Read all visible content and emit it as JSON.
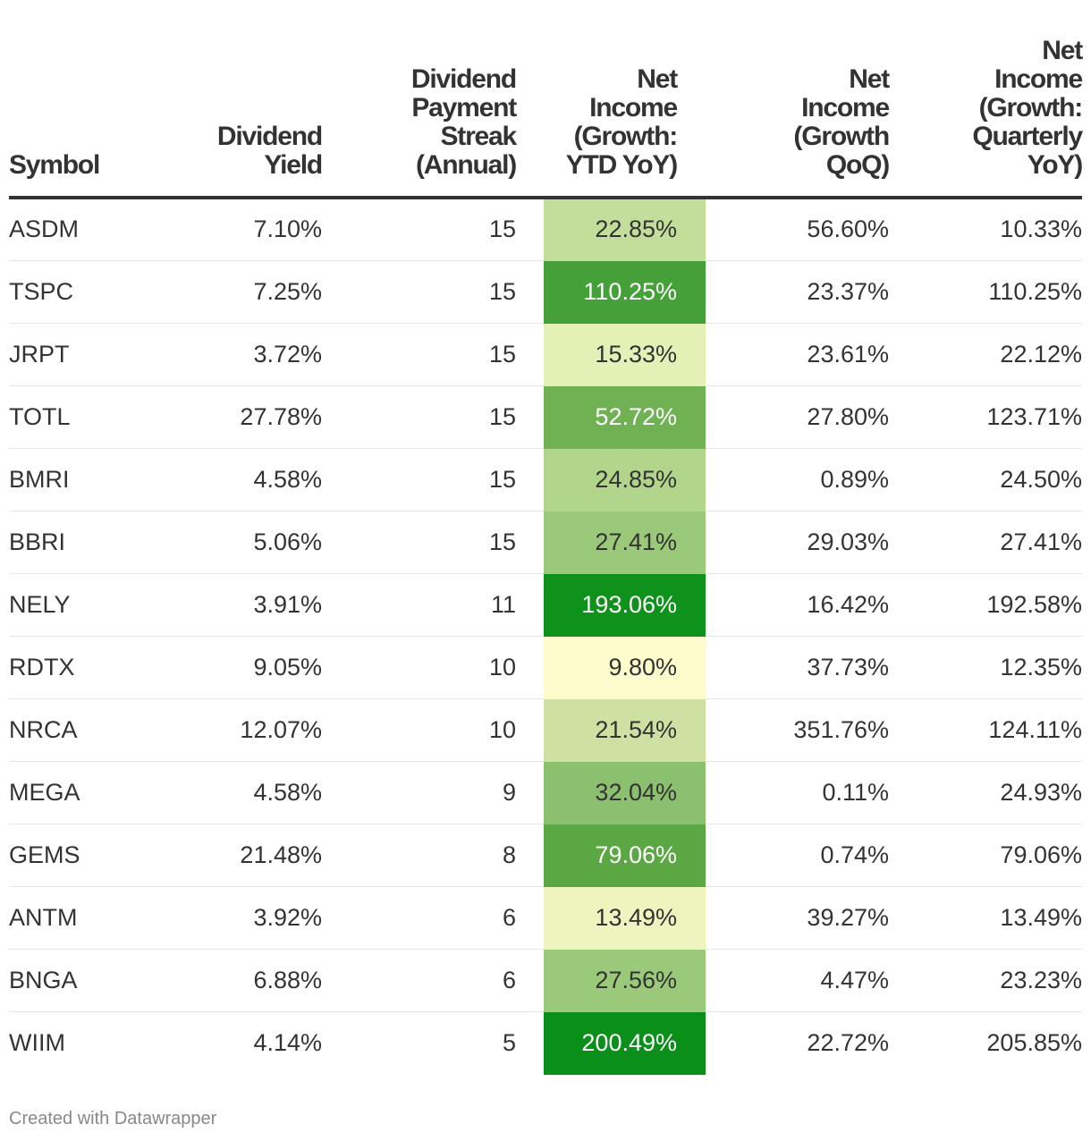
{
  "chart_data": {
    "type": "table",
    "columns": [
      "Symbol",
      "Dividend Yield",
      "Dividend Payment Streak (Annual)",
      "Net Income (Growth: YTD YoY)",
      "Net Income (Growth QoQ)",
      "Net Income (Growth: Quarterly YoY)"
    ],
    "header_lines": [
      [
        "Symbol"
      ],
      [
        "Dividend",
        "Yield"
      ],
      [
        "Dividend",
        "Payment",
        "Streak",
        "(Annual)"
      ],
      [
        "Net",
        "Income",
        "(Growth:",
        "YTD YoY)"
      ],
      [
        "Net",
        "Income",
        "(Growth",
        "QoQ)"
      ],
      [
        "Net",
        "Income",
        "(Growth:",
        "Quarterly",
        "YoY)"
      ]
    ],
    "heatmap_column": 3,
    "rows": [
      {
        "symbol": "ASDM",
        "yield": "7.10%",
        "streak": "15",
        "ytd": "22.85%",
        "ytd_value": 22.85,
        "qoq": "56.60%",
        "qyoy": "10.33%"
      },
      {
        "symbol": "TSPC",
        "yield": "7.25%",
        "streak": "15",
        "ytd": "110.25%",
        "ytd_value": 110.25,
        "qoq": "23.37%",
        "qyoy": "110.25%"
      },
      {
        "symbol": "JRPT",
        "yield": "3.72%",
        "streak": "15",
        "ytd": "15.33%",
        "ytd_value": 15.33,
        "qoq": "23.61%",
        "qyoy": "22.12%"
      },
      {
        "symbol": "TOTL",
        "yield": "27.78%",
        "streak": "15",
        "ytd": "52.72%",
        "ytd_value": 52.72,
        "qoq": "27.80%",
        "qyoy": "123.71%"
      },
      {
        "symbol": "BMRI",
        "yield": "4.58%",
        "streak": "15",
        "ytd": "24.85%",
        "ytd_value": 24.85,
        "qoq": "0.89%",
        "qyoy": "24.50%"
      },
      {
        "symbol": "BBRI",
        "yield": "5.06%",
        "streak": "15",
        "ytd": "27.41%",
        "ytd_value": 27.41,
        "qoq": "29.03%",
        "qyoy": "27.41%"
      },
      {
        "symbol": "NELY",
        "yield": "3.91%",
        "streak": "11",
        "ytd": "193.06%",
        "ytd_value": 193.06,
        "qoq": "16.42%",
        "qyoy": "192.58%"
      },
      {
        "symbol": "RDTX",
        "yield": "9.05%",
        "streak": "10",
        "ytd": "9.80%",
        "ytd_value": 9.8,
        "qoq": "37.73%",
        "qyoy": "12.35%"
      },
      {
        "symbol": "NRCA",
        "yield": "12.07%",
        "streak": "10",
        "ytd": "21.54%",
        "ytd_value": 21.54,
        "qoq": "351.76%",
        "qyoy": "124.11%"
      },
      {
        "symbol": "MEGA",
        "yield": "4.58%",
        "streak": "9",
        "ytd": "32.04%",
        "ytd_value": 32.04,
        "qoq": "0.11%",
        "qyoy": "24.93%"
      },
      {
        "symbol": "GEMS",
        "yield": "21.48%",
        "streak": "8",
        "ytd": "79.06%",
        "ytd_value": 79.06,
        "qoq": "0.74%",
        "qyoy": "79.06%"
      },
      {
        "symbol": "ANTM",
        "yield": "3.92%",
        "streak": "6",
        "ytd": "13.49%",
        "ytd_value": 13.49,
        "qoq": "39.27%",
        "qyoy": "13.49%"
      },
      {
        "symbol": "BNGA",
        "yield": "6.88%",
        "streak": "6",
        "ytd": "27.56%",
        "ytd_value": 27.56,
        "qoq": "4.47%",
        "qyoy": "23.23%"
      },
      {
        "symbol": "WIIM",
        "yield": "4.14%",
        "streak": "5",
        "ytd": "200.49%",
        "ytd_value": 200.49,
        "qoq": "22.72%",
        "qyoy": "205.85%"
      }
    ],
    "color_scale": {
      "stops": [
        {
          "value": 9.8,
          "color": "#fefbcd"
        },
        {
          "value": 13.49,
          "color": "#eff4bf"
        },
        {
          "value": 15.33,
          "color": "#e5f0b6"
        },
        {
          "value": 21.54,
          "color": "#cfe1a2"
        },
        {
          "value": 22.85,
          "color": "#c3de9a"
        },
        {
          "value": 24.85,
          "color": "#b1d68b"
        },
        {
          "value": 27.41,
          "color": "#9ac97a"
        },
        {
          "value": 32.04,
          "color": "#8bc06e"
        },
        {
          "value": 52.72,
          "color": "#70b154"
        },
        {
          "value": 79.06,
          "color": "#5aa744"
        },
        {
          "value": 110.25,
          "color": "#45a03a"
        },
        {
          "value": 193.06,
          "color": "#0e921c"
        },
        {
          "value": 200.49,
          "color": "#098f1a"
        }
      ],
      "dark_text_color": "#333333",
      "light_text_color": "#ffffff",
      "light_text_threshold": 50
    }
  },
  "footer": {
    "credit": "Created with Datawrapper"
  }
}
